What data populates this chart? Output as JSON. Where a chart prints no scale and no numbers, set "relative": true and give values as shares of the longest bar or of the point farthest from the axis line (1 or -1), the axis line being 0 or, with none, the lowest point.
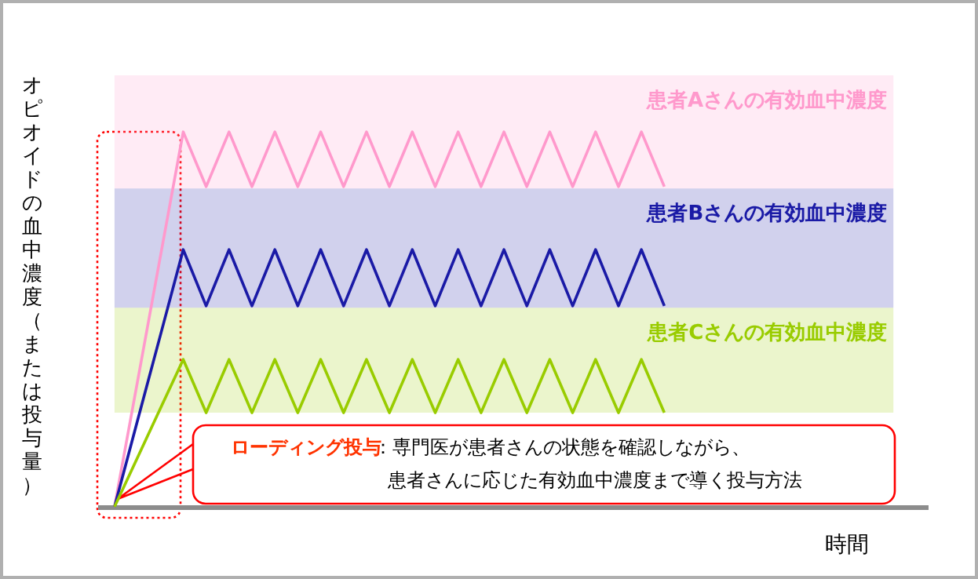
{
  "chart_data": {
    "type": "line",
    "relative": true,
    "xlabel": "時間",
    "ylabel": "オピオイドの血中濃度（または投与量）",
    "categories": [
      null,
      null,
      null,
      null,
      null,
      null,
      null,
      null,
      null,
      null,
      null,
      null,
      null,
      null,
      null,
      null,
      null,
      null,
      null,
      null,
      null,
      null,
      null,
      null,
      null,
      null,
      null,
      null,
      null,
      null,
      null,
      null,
      null,
      null,
      null
    ],
    "series": [
      {
        "name": "患者Aさんの有効血中濃度",
        "color": "#ff99cc",
        "values": [
          0,
          0.333,
          0.667,
          1,
          0.854,
          1,
          0.854,
          1,
          0.854,
          1,
          0.854,
          1,
          0.854,
          1,
          0.854,
          1,
          0.854,
          1,
          0.854,
          1,
          0.854,
          1,
          0.854,
          1,
          0.854,
          null,
          null,
          null,
          null,
          null,
          null,
          null,
          null,
          null,
          null
        ],
        "lower": [
          0.849,
          0.849,
          0.849,
          0.849,
          0.849,
          0.849,
          0.849,
          0.849,
          0.849,
          0.849,
          0.849,
          0.849,
          0.849,
          0.849,
          0.849,
          0.849,
          0.849,
          0.849,
          0.849,
          0.849,
          0.849,
          0.849,
          0.849,
          0.849,
          0.849,
          0.849,
          0.849,
          0.849,
          0.849,
          0.849,
          0.849,
          0.849,
          0.849,
          0.849,
          0.849
        ],
        "upper": [
          1.151,
          1.151,
          1.151,
          1.151,
          1.151,
          1.151,
          1.151,
          1.151,
          1.151,
          1.151,
          1.151,
          1.151,
          1.151,
          1.151,
          1.151,
          1.151,
          1.151,
          1.151,
          1.151,
          1.151,
          1.151,
          1.151,
          1.151,
          1.151,
          1.151,
          1.151,
          1.151,
          1.151,
          1.151,
          1.151,
          1.151,
          1.151,
          1.151,
          1.151,
          1.151
        ]
      },
      {
        "name": "患者Bさんの有効血中濃度",
        "color": "#1a1aa6",
        "values": [
          0,
          0.229,
          0.457,
          0.686,
          0.536,
          0.686,
          0.536,
          0.686,
          0.536,
          0.686,
          0.536,
          0.686,
          0.536,
          0.686,
          0.536,
          0.686,
          0.536,
          0.686,
          0.536,
          0.686,
          0.536,
          0.686,
          0.536,
          0.686,
          0.536,
          null,
          null,
          null,
          null,
          null,
          null,
          null,
          null,
          null,
          null
        ],
        "lower": [
          0.531,
          0.531,
          0.531,
          0.531,
          0.531,
          0.531,
          0.531,
          0.531,
          0.531,
          0.531,
          0.531,
          0.531,
          0.531,
          0.531,
          0.531,
          0.531,
          0.531,
          0.531,
          0.531,
          0.531,
          0.531,
          0.531,
          0.531,
          0.531,
          0.531,
          0.531,
          0.531,
          0.531,
          0.531,
          0.531,
          0.531,
          0.531,
          0.531,
          0.531,
          0.531
        ],
        "upper": [
          0.849,
          0.849,
          0.849,
          0.849,
          0.849,
          0.849,
          0.849,
          0.849,
          0.849,
          0.849,
          0.849,
          0.849,
          0.849,
          0.849,
          0.849,
          0.849,
          0.849,
          0.849,
          0.849,
          0.849,
          0.849,
          0.849,
          0.849,
          0.849,
          0.849,
          0.849,
          0.849,
          0.849,
          0.849,
          0.849,
          0.849,
          0.849,
          0.849,
          0.849,
          0.849
        ]
      },
      {
        "name": "患者Cさんの有効血中濃度",
        "color": "#99cc00",
        "values": [
          0,
          0.131,
          0.262,
          0.393,
          0.251,
          0.393,
          0.251,
          0.393,
          0.251,
          0.393,
          0.251,
          0.393,
          0.251,
          0.393,
          0.251,
          0.393,
          0.251,
          0.393,
          0.251,
          0.393,
          0.251,
          0.393,
          0.251,
          0.393,
          0.251,
          null,
          null,
          null,
          null,
          null,
          null,
          null,
          null,
          null,
          null
        ],
        "lower": [
          0.251,
          0.251,
          0.251,
          0.251,
          0.251,
          0.251,
          0.251,
          0.251,
          0.251,
          0.251,
          0.251,
          0.251,
          0.251,
          0.251,
          0.251,
          0.251,
          0.251,
          0.251,
          0.251,
          0.251,
          0.251,
          0.251,
          0.251,
          0.251,
          0.251,
          0.251,
          0.251,
          0.251,
          0.251,
          0.251,
          0.251,
          0.251,
          0.251,
          0.251,
          0.251
        ],
        "upper": [
          0.531,
          0.531,
          0.531,
          0.531,
          0.531,
          0.531,
          0.531,
          0.531,
          0.531,
          0.531,
          0.531,
          0.531,
          0.531,
          0.531,
          0.531,
          0.531,
          0.531,
          0.531,
          0.531,
          0.531,
          0.531,
          0.531,
          0.531,
          0.531,
          0.531,
          0.531,
          0.531,
          0.531,
          0.531,
          0.531,
          0.531,
          0.531,
          0.531,
          0.531,
          0.531
        ]
      }
    ],
    "annotations": [
      "ローディング投与：専門医が患者さんの状態を確認しながら、患者さんに応じた有効血中濃度まで導く投与方法"
    ]
  }
}
